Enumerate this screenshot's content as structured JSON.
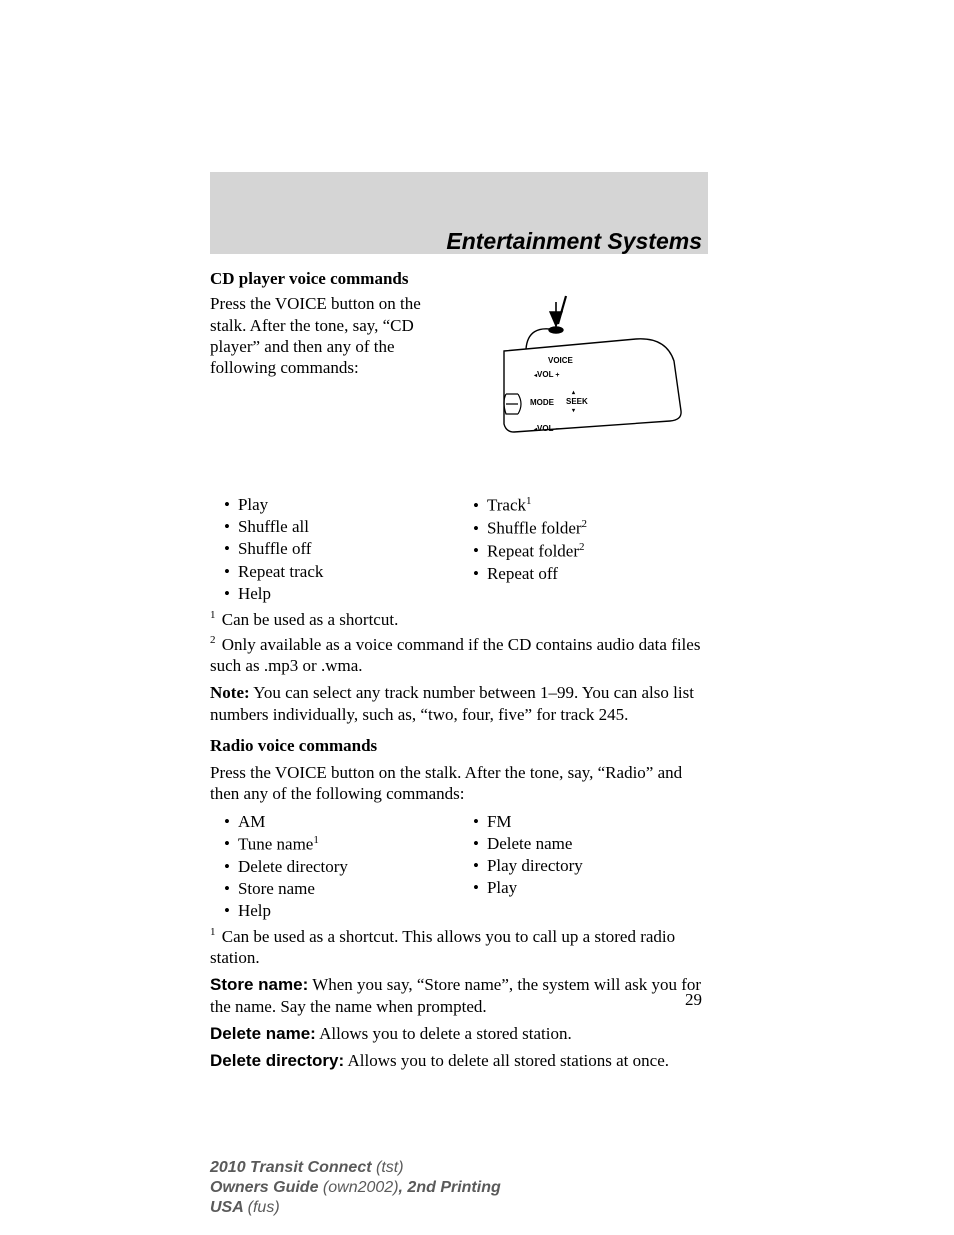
{
  "header": {
    "title": "Entertainment Systems"
  },
  "cd": {
    "heading": "CD player voice commands",
    "intro": "Press the VOICE button on the stalk. After the tone, say, “CD player” and then any of the following commands:",
    "left": [
      {
        "text": "Play",
        "sup": ""
      },
      {
        "text": "Shuffle all",
        "sup": ""
      },
      {
        "text": "Shuffle off",
        "sup": ""
      },
      {
        "text": "Repeat track",
        "sup": ""
      },
      {
        "text": "Help",
        "sup": ""
      }
    ],
    "right": [
      {
        "text": "Track",
        "sup": "1"
      },
      {
        "text": "Shuffle folder",
        "sup": "2"
      },
      {
        "text": "Repeat folder",
        "sup": "2"
      },
      {
        "text": "Repeat off",
        "sup": ""
      }
    ],
    "fn1": {
      "sup": "1",
      "text": " Can be used as a shortcut."
    },
    "fn2": {
      "sup": "2",
      "text": " Only available as a voice command if the CD contains audio data files such as .mp3 or .wma."
    },
    "note_label": "Note:",
    "note_text": " You can select any track number between 1–99. You can also list numbers individually, such as, “two, four, five” for track 245."
  },
  "radio": {
    "heading": "Radio voice commands",
    "intro": "Press the VOICE button on the stalk. After the tone, say, “Radio” and then any of the following commands:",
    "left": [
      {
        "text": "AM",
        "sup": ""
      },
      {
        "text": "Tune name",
        "sup": "1"
      },
      {
        "text": "Delete directory",
        "sup": ""
      },
      {
        "text": "Store name",
        "sup": ""
      },
      {
        "text": "Help",
        "sup": ""
      }
    ],
    "right": [
      {
        "text": "FM",
        "sup": ""
      },
      {
        "text": "Delete name",
        "sup": ""
      },
      {
        "text": "Play directory",
        "sup": ""
      },
      {
        "text": "Play",
        "sup": ""
      }
    ],
    "fn1": {
      "sup": "1",
      "text": " Can be used as a shortcut. This allows you to call up a stored radio station."
    },
    "store_label": "Store name:",
    "store_text": " When you say, “Store name”, the system will ask you for the name. Say the name when prompted.",
    "delname_label": "Delete name:",
    "delname_text": " Allows you to delete a stored station.",
    "deldir_label": "Delete directory:",
    "deldir_text": " Allows you to delete all stored stations at once."
  },
  "pagenum": "29",
  "footer": {
    "l1a": "2010 Transit Connect ",
    "l1b": "(tst)",
    "l2a": "Owners Guide ",
    "l2b": "(own2002)",
    "l2c": ", 2nd Printing",
    "l3a": "USA ",
    "l3b": "(fus)"
  },
  "diagram": {
    "labels": {
      "voice": "VOICE",
      "volp": "VOL",
      "mode": "MODE",
      "seek": "SEEK",
      "volm": "VOL"
    }
  }
}
